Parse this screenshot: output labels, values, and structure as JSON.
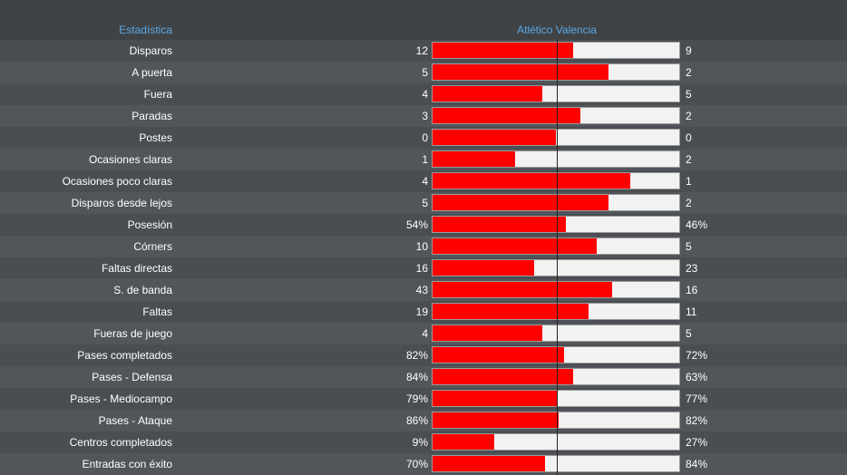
{
  "header": {
    "stat_label": "Estadística",
    "home_team": "Atlético",
    "away_team": "Valencia"
  },
  "colors": {
    "home": "#ff0000",
    "away": "#f2f2f2",
    "header_text": "#5aa8e6"
  },
  "stats": [
    {
      "label": "Disparos",
      "home": "12",
      "away": "9",
      "home_share": 0.571
    },
    {
      "label": "A puerta",
      "home": "5",
      "away": "2",
      "home_share": 0.714
    },
    {
      "label": "Fuera",
      "home": "4",
      "away": "5",
      "home_share": 0.444
    },
    {
      "label": "Paradas",
      "home": "3",
      "away": "2",
      "home_share": 0.6
    },
    {
      "label": "Postes",
      "home": "0",
      "away": "0",
      "home_share": 0.5
    },
    {
      "label": "Ocasiones claras",
      "home": "1",
      "away": "2",
      "home_share": 0.333
    },
    {
      "label": "Ocasiones poco claras",
      "home": "4",
      "away": "1",
      "home_share": 0.8
    },
    {
      "label": "Disparos desde lejos",
      "home": "5",
      "away": "2",
      "home_share": 0.714
    },
    {
      "label": "Posesión",
      "home": "54%",
      "away": "46%",
      "home_share": 0.54
    },
    {
      "label": "Córners",
      "home": "10",
      "away": "5",
      "home_share": 0.667
    },
    {
      "label": "Faltas directas",
      "home": "16",
      "away": "23",
      "home_share": 0.41
    },
    {
      "label": "S. de banda",
      "home": "43",
      "away": "16",
      "home_share": 0.729
    },
    {
      "label": "Faltas",
      "home": "19",
      "away": "11",
      "home_share": 0.633
    },
    {
      "label": "Fueras de juego",
      "home": "4",
      "away": "5",
      "home_share": 0.444
    },
    {
      "label": "Pases completados",
      "home": "82%",
      "away": "72%",
      "home_share": 0.532
    },
    {
      "label": "Pases - Defensa",
      "home": "84%",
      "away": "63%",
      "home_share": 0.571
    },
    {
      "label": "Pases - Mediocampo",
      "home": "79%",
      "away": "77%",
      "home_share": 0.506
    },
    {
      "label": "Pases - Ataque",
      "home": "86%",
      "away": "82%",
      "home_share": 0.512
    },
    {
      "label": "Centros completados",
      "home": "9%",
      "away": "27%",
      "home_share": 0.25
    },
    {
      "label": "Entradas con éxito",
      "home": "70%",
      "away": "84%",
      "home_share": 0.455
    }
  ]
}
